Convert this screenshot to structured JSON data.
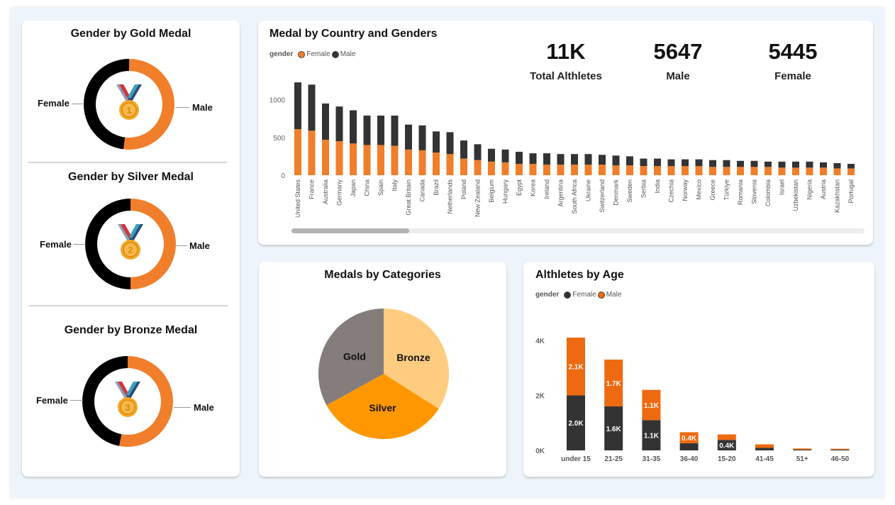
{
  "colors": {
    "female_orange": "#F07E2A",
    "male_black": "#000000",
    "bar_dark": "#333333",
    "bar_orange": "#F07E2A",
    "age_orange": "#EE6A10",
    "gold": "#857C7C",
    "silver": "#FF9800",
    "bronze": "#FFCC80"
  },
  "gold_card": {
    "title": "Gender by Gold Medal",
    "female_label": "Female",
    "male_label": "Male",
    "medal_number": "1"
  },
  "silver_card": {
    "title": "Gender by Silver Medal",
    "female_label": "Female",
    "male_label": "Male",
    "medal_number": "2"
  },
  "bronze_card": {
    "title": "Gender by Bronze Medal",
    "female_label": "Female",
    "male_label": "Male",
    "medal_number": "3"
  },
  "country_card": {
    "title": "Medal by Country and Genders",
    "legend": {
      "title": "gender",
      "items": [
        "Female",
        "Male"
      ]
    },
    "kpis": [
      {
        "value": "11K",
        "label": "Total Althletes"
      },
      {
        "value": "5647",
        "label": "Male"
      },
      {
        "value": "5445",
        "label": "Female"
      }
    ]
  },
  "categories_card": {
    "title": "Medals by Categories"
  },
  "age_card": {
    "title": "Althletes by Age",
    "legend": {
      "title": "gender",
      "items": [
        "Female",
        "Male"
      ]
    }
  },
  "chart_data": [
    {
      "type": "pie",
      "title": "Gender by Gold Medal",
      "labels": [
        "Male",
        "Female"
      ],
      "values": [
        52,
        48
      ]
    },
    {
      "type": "pie",
      "title": "Gender by Silver Medal",
      "labels": [
        "Male",
        "Female"
      ],
      "values": [
        50,
        50
      ]
    },
    {
      "type": "pie",
      "title": "Gender by Bronze Medal",
      "labels": [
        "Male",
        "Female"
      ],
      "values": [
        53,
        47
      ]
    },
    {
      "type": "bar",
      "stacked": true,
      "title": "Medal by Country and Genders",
      "categories": [
        "United States",
        "France",
        "Australia",
        "Germany",
        "Japan",
        "China",
        "Spain",
        "Italy",
        "Great Britain",
        "Canada",
        "Brazil",
        "Netherlands",
        "Poland",
        "New Zealand",
        "Belgium",
        "Hungary",
        "Egypt",
        "Korea",
        "Ireland",
        "Argentina",
        "South Africa",
        "Ukraine",
        "Switzerland",
        "Denmark",
        "Sweden",
        "Serbia",
        "India",
        "Czechia",
        "Norway",
        "Mexico",
        "Greece",
        "Türkiye",
        "Romania",
        "Slovenia",
        "Colombia",
        "Israel",
        "Uzbekistan",
        "Nigeria",
        "Austria",
        "Kazakhstan",
        "Portugal"
      ],
      "series": [
        {
          "name": "Female",
          "values": [
            610,
            590,
            470,
            450,
            420,
            400,
            400,
            390,
            340,
            330,
            300,
            280,
            220,
            200,
            180,
            170,
            150,
            150,
            140,
            140,
            140,
            140,
            140,
            130,
            130,
            120,
            120,
            120,
            120,
            120,
            110,
            110,
            110,
            110,
            110,
            100,
            100,
            100,
            100,
            90,
            90
          ]
        },
        {
          "name": "Male",
          "values": [
            620,
            610,
            480,
            460,
            440,
            390,
            390,
            400,
            330,
            330,
            280,
            290,
            240,
            210,
            170,
            170,
            160,
            140,
            150,
            140,
            140,
            140,
            130,
            130,
            120,
            100,
            100,
            90,
            90,
            90,
            90,
            90,
            80,
            80,
            70,
            80,
            80,
            80,
            70,
            70,
            60
          ]
        }
      ],
      "ylim": [
        0,
        1250
      ],
      "yticks": [
        "0",
        "500",
        "1000"
      ],
      "legend": "top-left"
    },
    {
      "type": "pie",
      "title": "Medals by Categories",
      "labels": [
        "Bronze",
        "Silver",
        "Gold"
      ],
      "values": [
        34,
        33,
        33
      ]
    },
    {
      "type": "bar",
      "stacked": true,
      "title": "Althletes by Age",
      "categories": [
        "under 15",
        "21-25",
        "31-35",
        "36-40",
        "15-20",
        "41-45",
        "51+",
        "46-50"
      ],
      "series": [
        {
          "name": "Female",
          "values": [
            2000,
            1600,
            1100,
            260,
            380,
            90,
            30,
            30
          ],
          "labels": [
            "2.0K",
            "1.6K",
            "1.1K",
            "",
            "0.4K",
            "",
            "",
            ""
          ]
        },
        {
          "name": "Male",
          "values": [
            2100,
            1700,
            1100,
            400,
            200,
            130,
            40,
            30
          ],
          "labels": [
            "2.1K",
            "1.7K",
            "1.1K",
            "0.4K",
            "",
            "",
            "",
            ""
          ]
        }
      ],
      "ylim": [
        0,
        4100
      ],
      "yticks": [
        "0K",
        "2K",
        "4K"
      ],
      "legend": "top-left"
    }
  ]
}
